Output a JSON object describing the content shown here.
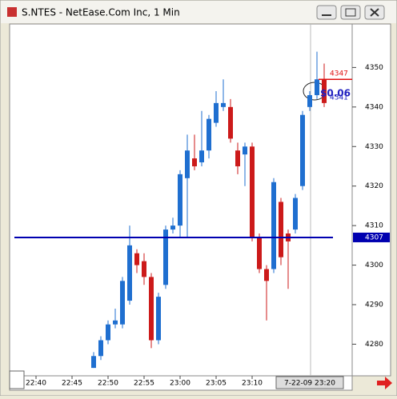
{
  "window_title": "S.NTES - NetEase.Com Inc, 1 Min",
  "chart_data": {
    "type": "candlestick",
    "categories": [
      "22:40",
      null,
      null,
      null,
      null,
      "22:45",
      null,
      null,
      null,
      null,
      "22:50",
      null,
      null,
      null,
      null,
      "22:55",
      null,
      null,
      null,
      null,
      "23:00",
      null,
      null,
      null,
      null,
      "23:05",
      null,
      null,
      null,
      null,
      "23:10",
      null,
      null,
      null,
      null,
      null,
      null,
      null,
      null,
      null,
      null
    ],
    "open": [
      null,
      null,
      null,
      null,
      null,
      null,
      null,
      null,
      4274,
      4277,
      4281,
      4285,
      4285,
      4291,
      4303,
      4301,
      4297,
      4281,
      4295,
      4309,
      4310,
      4322,
      4327,
      4326,
      4329,
      4336,
      4340,
      4340,
      4329,
      4328,
      4330,
      4307,
      4299,
      4299,
      4316,
      4308,
      4309,
      4320,
      4340,
      4343,
      4347
    ],
    "high": [
      null,
      null,
      null,
      null,
      null,
      null,
      null,
      null,
      4278,
      4282,
      4286,
      4289,
      4297,
      4310,
      4304,
      4303,
      4298,
      4293,
      4310,
      4312,
      4324,
      4333,
      4333,
      4339,
      4338,
      4344,
      4347,
      4342,
      4331,
      4331,
      4331,
      4308,
      4300,
      4322,
      4317,
      4309,
      4318,
      4339,
      4344,
      4354,
      4351
    ],
    "low": [
      null,
      null,
      null,
      null,
      null,
      null,
      null,
      null,
      4274,
      4276,
      4280,
      4284,
      4284,
      4290,
      4298,
      4295,
      4279,
      4280,
      4294,
      4308,
      4307,
      4307,
      4324,
      4325,
      4327,
      4335,
      4339,
      4331,
      4323,
      4320,
      4306,
      4298,
      4286,
      4298,
      4300,
      4294,
      4308,
      4319,
      4339,
      4342,
      4340
    ],
    "close": [
      null,
      null,
      null,
      null,
      null,
      null,
      null,
      null,
      4277,
      4281,
      4285,
      4286,
      4296,
      4305,
      4300,
      4297,
      4281,
      4292,
      4309,
      4310,
      4323,
      4329,
      4325,
      4329,
      4337,
      4341,
      4341,
      4332,
      4325,
      4330,
      4307,
      4299,
      4296,
      4321,
      4302,
      4306,
      4317,
      4338,
      4343,
      4347,
      4341
    ],
    "up_color": "#1f6fd0",
    "down_color": "#cc1a1a",
    "ylim": [
      4272,
      4361
    ],
    "yticks": [
      4280,
      4290,
      4300,
      4310,
      4320,
      4330,
      4340,
      4350
    ],
    "horizontal_line": {
      "value": 4307,
      "color": "#0000b0"
    },
    "price_lines": [
      {
        "value": 4347,
        "color": "#e01010"
      },
      {
        "value": 4341,
        "color": "#2020c0"
      }
    ],
    "change_label": "$0.06",
    "cursor_label": "7-22-09 23:20"
  }
}
